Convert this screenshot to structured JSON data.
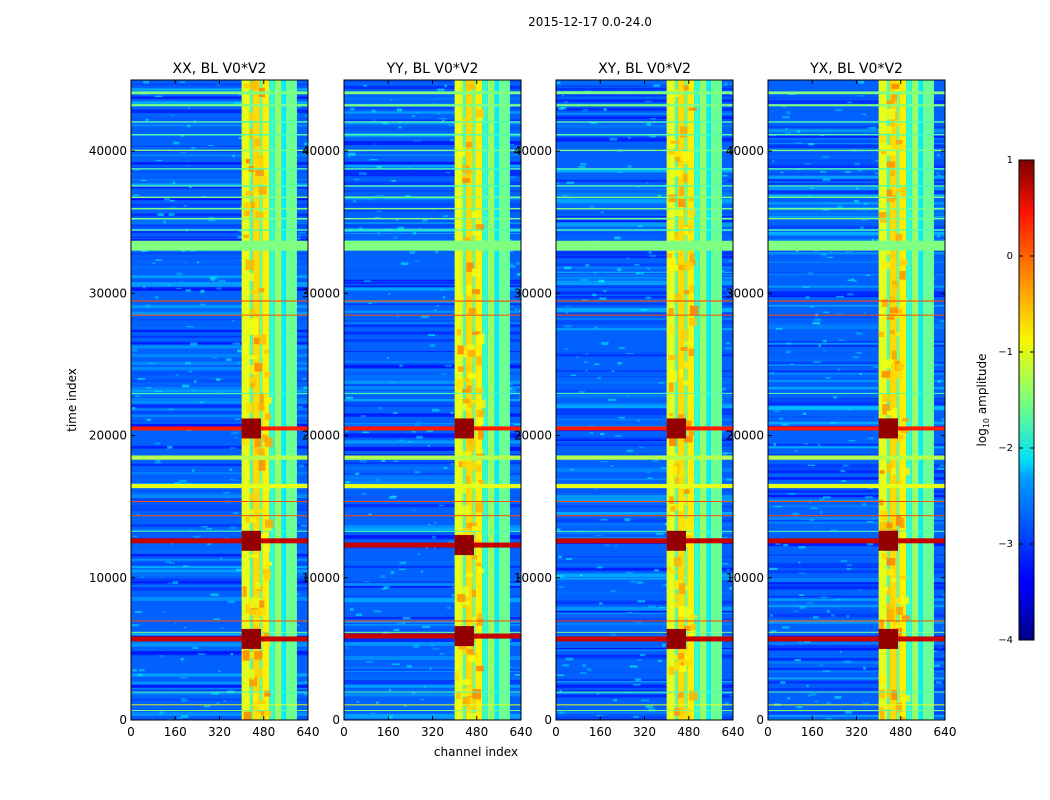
{
  "figure": {
    "suptitle": "2015-12-17 0.0-24.0",
    "ylabel": "time index",
    "xlabel": "channel index",
    "colorbar_label": "log",
    "colorbar_label_sub": "10",
    "colorbar_label_rest": " amplitude"
  },
  "colors": {
    "colormap": "jet",
    "background": "#ffffff"
  },
  "chart_data": [
    {
      "type": "heatmap",
      "title": "XX, BL V0*V2",
      "xlim": [
        0,
        640
      ],
      "ylim": [
        0,
        45000
      ],
      "xticks": [
        0,
        160,
        320,
        480,
        640
      ],
      "yticks": [
        0,
        10000,
        20000,
        30000,
        40000
      ],
      "bright_channel_range": [
        400,
        600
      ],
      "hot_time_indices": [
        5700,
        12600,
        20500
      ],
      "colorbar_range": [
        -4,
        1
      ]
    },
    {
      "type": "heatmap",
      "title": "YY, BL V0*V2",
      "xlim": [
        0,
        640
      ],
      "ylim": [
        0,
        45000
      ],
      "xticks": [
        0,
        160,
        320,
        480,
        640
      ],
      "yticks": [
        0,
        10000,
        20000,
        30000,
        40000
      ],
      "bright_channel_range": [
        400,
        600
      ],
      "hot_time_indices": [
        5900,
        12300,
        20500
      ],
      "colorbar_range": [
        -4,
        1
      ]
    },
    {
      "type": "heatmap",
      "title": "XY, BL V0*V2",
      "xlim": [
        0,
        640
      ],
      "ylim": [
        0,
        45000
      ],
      "xticks": [
        0,
        160,
        320,
        480,
        640
      ],
      "yticks": [
        0,
        10000,
        20000,
        30000,
        40000
      ],
      "bright_channel_range": [
        400,
        600
      ],
      "hot_time_indices": [
        5700,
        12600,
        20500
      ],
      "colorbar_range": [
        -4,
        1
      ]
    },
    {
      "type": "heatmap",
      "title": "YX, BL V0*V2",
      "xlim": [
        0,
        640
      ],
      "ylim": [
        0,
        45000
      ],
      "xticks": [
        0,
        160,
        320,
        480,
        640
      ],
      "yticks": [
        0,
        10000,
        20000,
        30000,
        40000
      ],
      "bright_channel_range": [
        400,
        600
      ],
      "hot_time_indices": [
        5700,
        12600,
        20500
      ],
      "colorbar_range": [
        -4,
        1
      ]
    }
  ],
  "colorbar": {
    "ticks": [
      1,
      0,
      -1,
      -2,
      -3,
      -4
    ],
    "tick_labels": [
      "1",
      "0",
      "−1",
      "−2",
      "−3",
      "−4"
    ]
  }
}
